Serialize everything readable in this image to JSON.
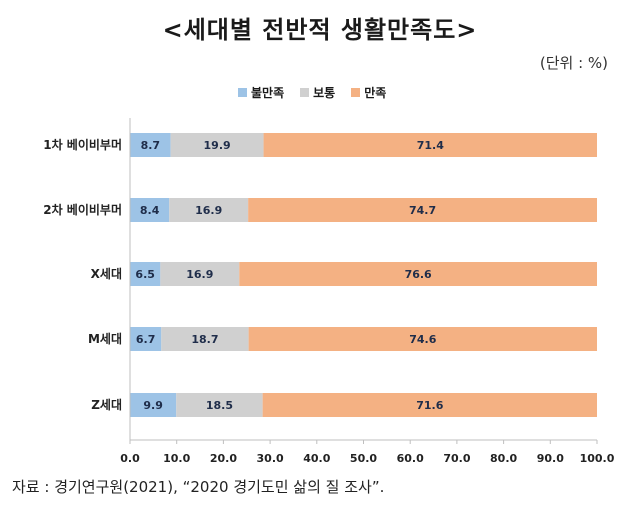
{
  "chart_data": {
    "type": "bar",
    "orientation": "horizontal",
    "stacked": true,
    "title": "<세대별 전반적 생활만족도>",
    "unit_note": "(단위 : %)",
    "categories": [
      "1차 베이비부머",
      "2차 베이비부머",
      "X세대",
      "M세대",
      "Z세대"
    ],
    "series": [
      {
        "name": "불만족",
        "color": "#9dc3e6",
        "values": [
          8.7,
          8.4,
          6.5,
          6.7,
          9.9
        ]
      },
      {
        "name": "보통",
        "color": "#d0d0d0",
        "values": [
          19.9,
          16.9,
          16.9,
          18.7,
          18.5
        ]
      },
      {
        "name": "만족",
        "color": "#f4b183",
        "values": [
          71.4,
          74.7,
          76.6,
          74.6,
          71.6
        ]
      }
    ],
    "xlim": [
      0,
      100
    ],
    "xticks": [
      "0.0",
      "10.0",
      "20.0",
      "30.0",
      "40.0",
      "50.0",
      "60.0",
      "70.0",
      "80.0",
      "90.0",
      "100.0"
    ],
    "legend_position": "top-center",
    "grid": false,
    "source": "자료 : 경기연구원(2021), “2020 경기도민 삶의 질 조사”."
  }
}
